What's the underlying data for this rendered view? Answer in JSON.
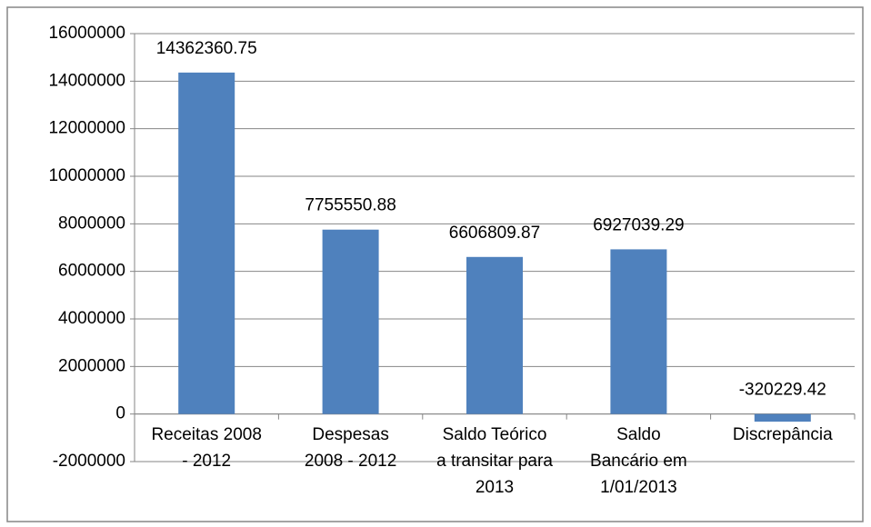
{
  "chart_data": {
    "type": "bar",
    "categories": [
      "Receitas 2008 - 2012",
      "Despesas 2008 - 2012",
      "Saldo Teórico a transitar para 2013",
      "Saldo Bancário em 1/01/2013",
      "Discrepância"
    ],
    "values": [
      14362360.75,
      7755550.88,
      6606809.87,
      6927039.29,
      -320229.42
    ],
    "color": "#4f81bd",
    "ylim": [
      -2000000,
      16000000
    ],
    "yticks": [
      -2000000,
      0,
      2000000,
      4000000,
      6000000,
      8000000,
      10000000,
      12000000,
      14000000,
      16000000
    ],
    "grid": true
  }
}
